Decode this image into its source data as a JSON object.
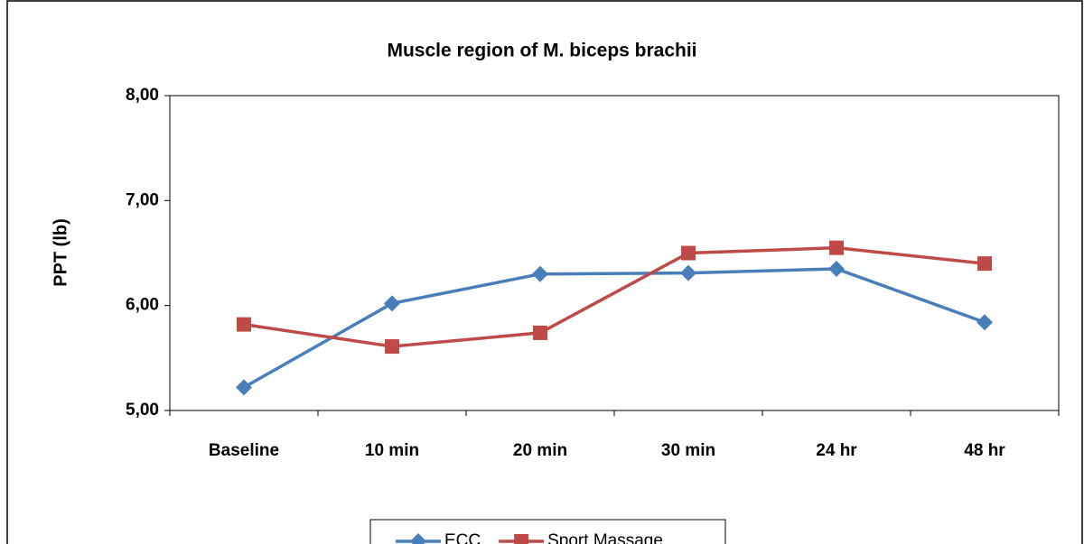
{
  "chart_data": {
    "type": "line",
    "title": "Muscle region of M. biceps brachii",
    "y_label": "PPT (lb)",
    "categories": [
      "Baseline",
      "10 min",
      "20 min",
      "30 min",
      "24 hr",
      "48 hr"
    ],
    "series": [
      {
        "name": "ECC",
        "color": "#4a7ebb",
        "marker": "diamond",
        "values": [
          5.22,
          6.02,
          6.3,
          6.31,
          6.35,
          5.84
        ]
      },
      {
        "name": "Sport Massage",
        "color": "#be4b48",
        "marker": "square",
        "values": [
          5.82,
          5.61,
          5.74,
          6.5,
          6.55,
          6.4
        ]
      }
    ],
    "ylim": [
      5,
      8
    ],
    "yticks": [
      {
        "value": 5,
        "label": "5,00"
      },
      {
        "value": 6,
        "label": "6,00"
      },
      {
        "value": 7,
        "label": "7,00"
      },
      {
        "value": 8,
        "label": "8,00"
      }
    ],
    "grid": false,
    "legend": "bottom"
  }
}
